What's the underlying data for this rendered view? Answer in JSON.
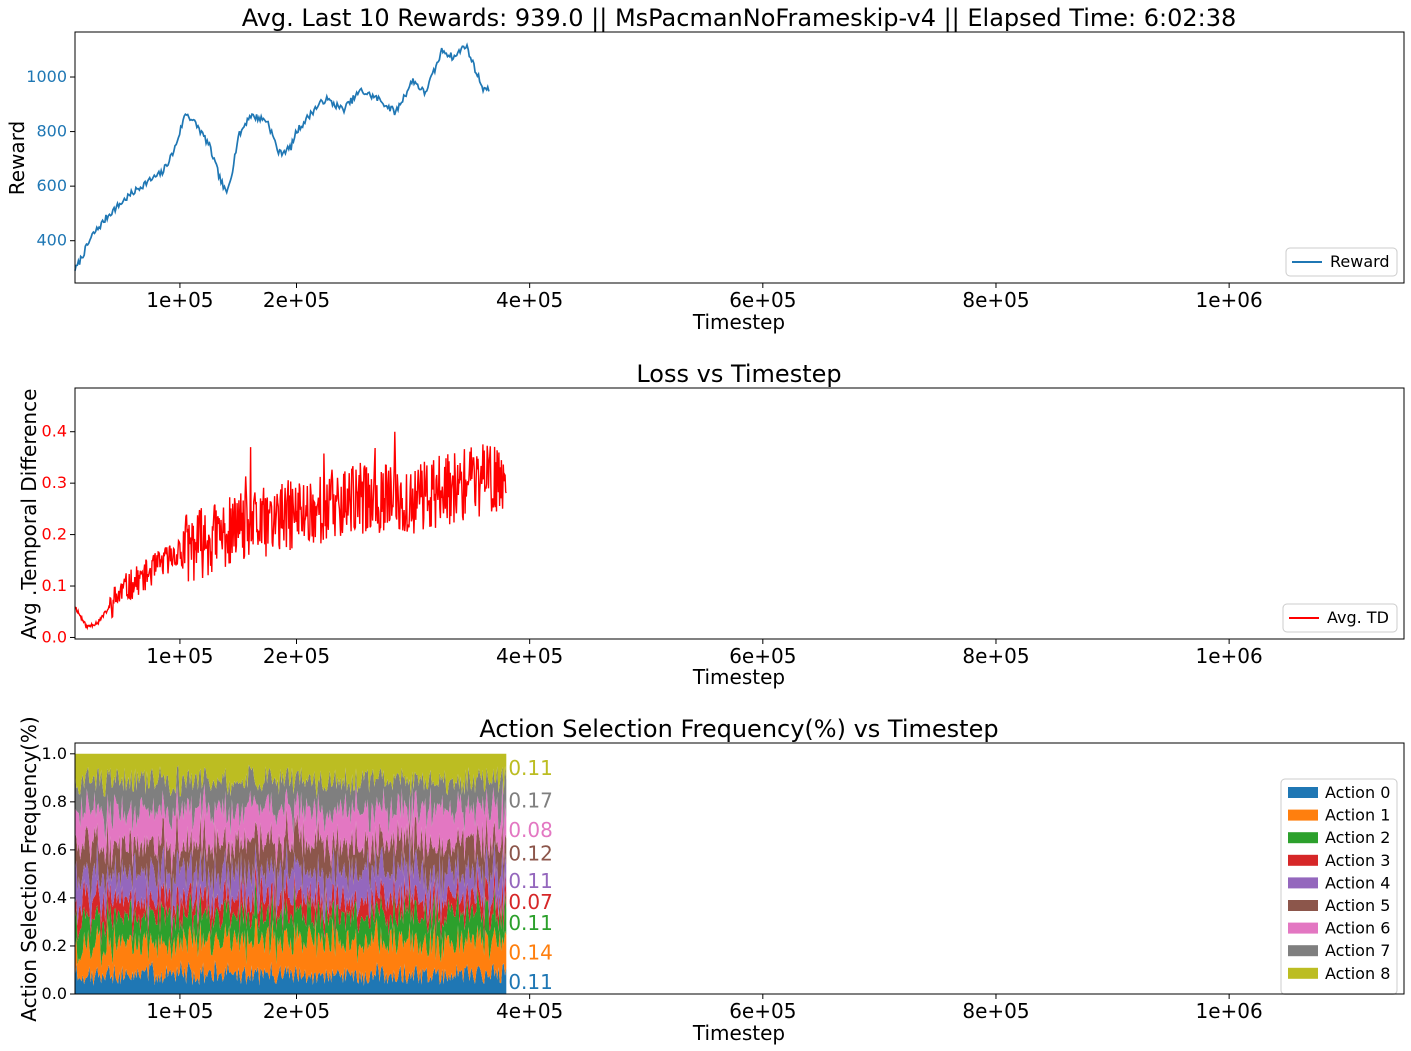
{
  "colors": {
    "reward": "#1f77b4",
    "td": "#ff0000",
    "actions": [
      "#1f77b4",
      "#ff7f0e",
      "#2ca02c",
      "#d62728",
      "#9467bd",
      "#8c564b",
      "#e377c2",
      "#7f7f7f",
      "#bcbd22"
    ]
  },
  "chart_data": [
    {
      "type": "line",
      "title": "Avg. Last 10 Rewards: 939.0 || MsPacmanNoFrameskip-v4 || Elapsed Time: 6:02:38",
      "xlabel": "Timestep",
      "ylabel": "Reward",
      "xlim": [
        10000,
        1150000
      ],
      "ylim": [
        245,
        1165
      ],
      "x_ticks": [
        100000,
        200000,
        400000,
        600000,
        800000,
        1000000
      ],
      "x_tick_labels": [
        "1e+05",
        "2e+05",
        "4e+05",
        "6e+05",
        "8e+05",
        "1e+06"
      ],
      "y_ticks": [
        400,
        600,
        800,
        1000
      ],
      "y_tick_labels": [
        "400",
        "600",
        "800",
        "1000"
      ],
      "legend": {
        "position": "lower-right",
        "entries": [
          "Reward"
        ]
      },
      "series": [
        {
          "name": "Reward",
          "x": [
            10000,
            25000,
            40000,
            55000,
            70000,
            85000,
            95000,
            105000,
            115000,
            125000,
            135000,
            140000,
            145000,
            150000,
            160000,
            175000,
            185000,
            195000,
            200000,
            215000,
            225000,
            240000,
            255000,
            270000,
            285000,
            300000,
            310000,
            320000,
            325000,
            335000,
            345000,
            355000,
            360000,
            365000
          ],
          "y": [
            290,
            420,
            500,
            560,
            610,
            650,
            730,
            870,
            820,
            750,
            620,
            570,
            660,
            780,
            860,
            840,
            720,
            740,
            800,
            880,
            920,
            880,
            950,
            920,
            870,
            990,
            940,
            1040,
            1100,
            1070,
            1120,
            1010,
            960,
            950
          ]
        }
      ]
    },
    {
      "type": "line",
      "title": "Loss vs Timestep",
      "xlabel": "Timestep",
      "ylabel": "Avg .Temporal Difference",
      "xlim": [
        10000,
        1150000
      ],
      "ylim": [
        -0.003,
        0.485
      ],
      "x_ticks": [
        100000,
        200000,
        400000,
        600000,
        800000,
        1000000
      ],
      "x_tick_labels": [
        "1e+05",
        "2e+05",
        "4e+05",
        "6e+05",
        "8e+05",
        "1e+06"
      ],
      "y_ticks": [
        0.0,
        0.1,
        0.2,
        0.3,
        0.4
      ],
      "y_tick_labels": [
        "0.0",
        "0.1",
        "0.2",
        "0.3",
        "0.4"
      ],
      "legend": {
        "position": "lower-right",
        "entries": [
          "Avg. TD"
        ]
      },
      "series": [
        {
          "name": "Avg. TD",
          "x": [
            10000,
            20000,
            30000,
            50000,
            70000,
            100000,
            150000,
            200000,
            250000,
            300000,
            350000,
            380000
          ],
          "y": [
            0.06,
            0.02,
            0.03,
            0.09,
            0.12,
            0.17,
            0.21,
            0.24,
            0.27,
            0.27,
            0.3,
            0.32
          ]
        }
      ]
    },
    {
      "type": "area",
      "stacked": true,
      "title": "Action Selection Frequency(%) vs Timestep",
      "xlabel": "Timestep",
      "ylabel": "Action Selection Frequency(%)",
      "xlim": [
        10000,
        1150000
      ],
      "ylim": [
        0.0,
        1.045
      ],
      "data_x_range": [
        10000,
        380000
      ],
      "x_ticks": [
        100000,
        200000,
        400000,
        600000,
        800000,
        1000000
      ],
      "x_tick_labels": [
        "1e+05",
        "2e+05",
        "4e+05",
        "6e+05",
        "8e+05",
        "1e+06"
      ],
      "y_ticks": [
        0.0,
        0.2,
        0.4,
        0.6,
        0.8,
        1.0
      ],
      "y_tick_labels": [
        "0.0",
        "0.2",
        "0.4",
        "0.6",
        "0.8",
        "1.0"
      ],
      "legend": {
        "position": "right",
        "entries": [
          "Action 0",
          "Action 1",
          "Action 2",
          "Action 3",
          "Action 4",
          "Action 5",
          "Action 6",
          "Action 7",
          "Action 8"
        ]
      },
      "series": [
        {
          "name": "Action 0",
          "final": 0.11,
          "label": "0.11"
        },
        {
          "name": "Action 1",
          "final": 0.14,
          "label": "0.14"
        },
        {
          "name": "Action 2",
          "final": 0.11,
          "label": "0.11"
        },
        {
          "name": "Action 3",
          "final": 0.07,
          "label": "0.07"
        },
        {
          "name": "Action 4",
          "final": 0.11,
          "label": "0.11"
        },
        {
          "name": "Action 5",
          "final": 0.12,
          "label": "0.12"
        },
        {
          "name": "Action 6",
          "final": 0.08,
          "label": "0.08"
        },
        {
          "name": "Action 7",
          "final": 0.17,
          "label": "0.17"
        },
        {
          "name": "Action 8",
          "final": 0.11,
          "label": "0.11"
        }
      ]
    }
  ]
}
